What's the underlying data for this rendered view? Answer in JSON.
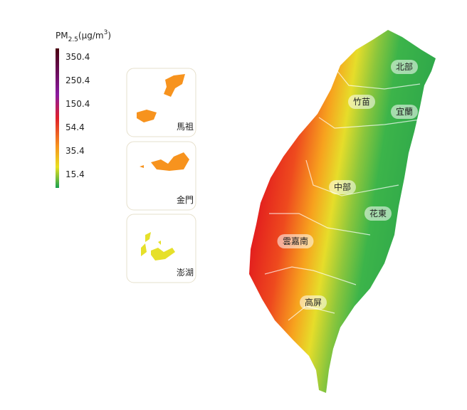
{
  "legend": {
    "title": {
      "main": "PM",
      "sub": "2.5",
      "unit": "(μg/m",
      "sup": "3",
      "close": ")"
    },
    "ticks": [
      350.4,
      250.4,
      150.4,
      54.4,
      35.4,
      15.4
    ]
  },
  "insets": [
    {
      "label": "馬祖"
    },
    {
      "label": "金門"
    },
    {
      "label": "澎湖"
    }
  ],
  "regions": [
    {
      "label": "北部"
    },
    {
      "label": "竹苗"
    },
    {
      "label": "宜蘭"
    },
    {
      "label": "中部"
    },
    {
      "label": "花東"
    },
    {
      "label": "雲嘉南"
    },
    {
      "label": "高屏"
    }
  ]
}
